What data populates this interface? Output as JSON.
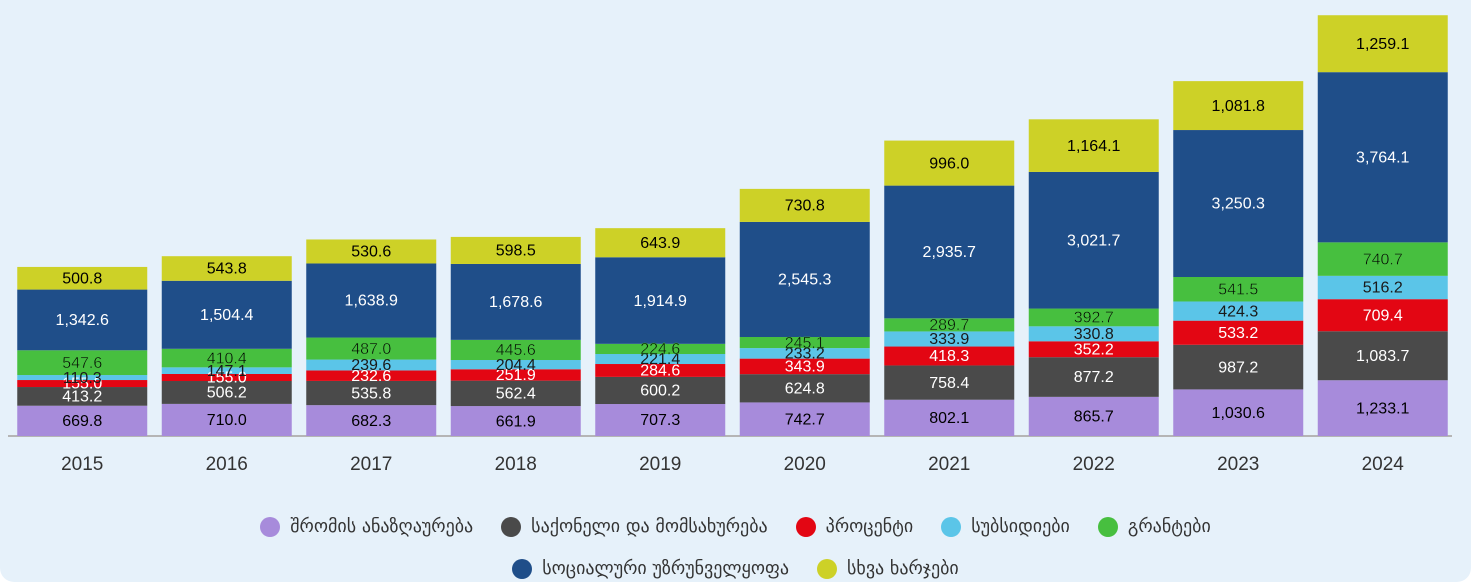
{
  "chart_data": {
    "type": "stacked-bar",
    "categories": [
      "2015",
      "2016",
      "2017",
      "2018",
      "2019",
      "2020",
      "2021",
      "2022",
      "2023",
      "2024"
    ],
    "ylim": [
      0,
      9400
    ],
    "series": [
      {
        "name": "შრომის ანაზღაურება",
        "color": "#a78bdb",
        "label_color": "#000000",
        "values": [
          669.8,
          710.0,
          682.3,
          661.9,
          707.3,
          742.7,
          802.1,
          865.7,
          1030.6,
          1233.1
        ],
        "value_labels": [
          "669.8",
          "710.0",
          "682.3",
          "661.9",
          "707.3",
          "742.7",
          "802.1",
          "865.7",
          "1,030.6",
          "1,233.1"
        ]
      },
      {
        "name": "საქონელი და მომსახურება",
        "color": "#4a4a4a",
        "label_color": "#ffffff",
        "values": [
          413.2,
          506.2,
          535.8,
          562.4,
          600.2,
          624.8,
          758.4,
          877.2,
          987.2,
          1083.7
        ],
        "value_labels": [
          "413.2",
          "506.2",
          "535.8",
          "562.4",
          "600.2",
          "624.8",
          "758.4",
          "877.2",
          "987.2",
          "1,083.7"
        ]
      },
      {
        "name": "პროცენტი",
        "color": "#e30613",
        "label_color": "#ffffff",
        "values": [
          155.0,
          155.0,
          232.6,
          251.9,
          284.6,
          343.9,
          418.3,
          352.2,
          533.2,
          709.4
        ],
        "value_labels": [
          "155.0",
          "155.0",
          "232.6",
          "251.9",
          "284.6",
          "343.9",
          "418.3",
          "352.2",
          "533.2",
          "709.4"
        ]
      },
      {
        "name": "სუბსიდიები",
        "color": "#5bc5e8",
        "label_color": "#1a1a1a",
        "values": [
          110.3,
          147.1,
          239.6,
          204.4,
          221.4,
          233.2,
          333.9,
          330.8,
          424.3,
          516.2
        ],
        "value_labels": [
          "110.3",
          "147.1",
          "239.6",
          "204.4",
          "221.4",
          "233.2",
          "333.9",
          "330.8",
          "424.3",
          "516.2"
        ]
      },
      {
        "name": "გრანტები",
        "color": "#47bf3f",
        "label_color": "#000000",
        "values": [
          547.6,
          410.4,
          487.0,
          445.6,
          224.6,
          245.1,
          289.7,
          392.7,
          541.5,
          740.7
        ],
        "value_labels": [
          "547.6",
          "410.4",
          "487.0",
          "445.6",
          "224.6",
          "245.1",
          "289.7",
          "392.7",
          "541.5",
          "740.7"
        ]
      },
      {
        "name": "სოციალური უზრუნველყოფა",
        "color": "#1f4e89",
        "label_color": "#ffffff",
        "values": [
          1342.6,
          1504.4,
          1638.9,
          1678.6,
          1914.9,
          2545.3,
          2935.7,
          3021.7,
          3250.3,
          3764.1
        ],
        "value_labels": [
          "1,342.6",
          "1,504.4",
          "1,638.9",
          "1,678.6",
          "1,914.9",
          "2,545.3",
          "2,935.7",
          "3,021.7",
          "3,250.3",
          "3,764.1"
        ]
      },
      {
        "name": "სხვა ხარჯები",
        "color": "#cdd127",
        "label_color": "#000000",
        "values": [
          500.8,
          543.8,
          530.6,
          598.5,
          643.9,
          730.8,
          996.0,
          1164.1,
          1081.8,
          1259.1
        ],
        "value_labels": [
          "500.8",
          "543.8",
          "530.6",
          "598.5",
          "643.9",
          "730.8",
          "996.0",
          "1,164.1",
          "1,081.8",
          "1,259.1"
        ]
      }
    ]
  }
}
